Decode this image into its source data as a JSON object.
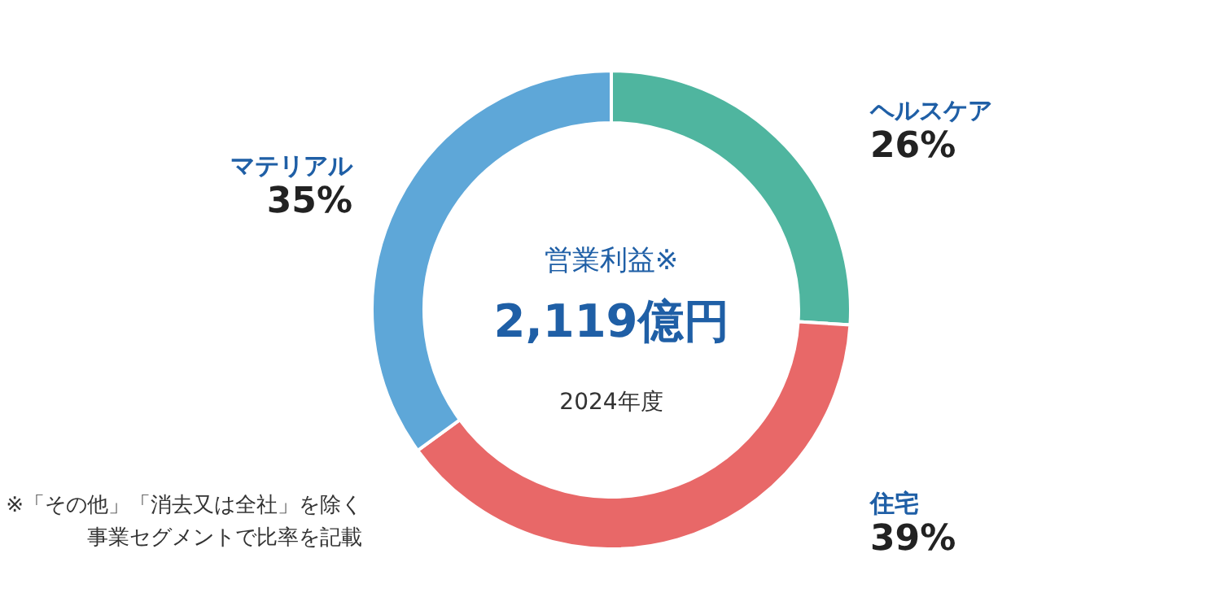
{
  "chart_data": {
    "type": "donut",
    "title": "営業利益※",
    "subtitle": "2,119億円",
    "categories": [
      "ヘルスケア",
      "住宅",
      "マテリアル"
    ],
    "values": [
      26,
      39,
      35
    ],
    "colors": [
      "#4fb59f",
      "#e86868",
      "#5ea7d8"
    ],
    "value_labels": [
      "26%",
      "39%",
      "35%"
    ],
    "annotations": [
      "2024年度",
      "※「その他」「消去又は全社」を除く",
      "事業セグメントで比率を記載"
    ]
  }
}
